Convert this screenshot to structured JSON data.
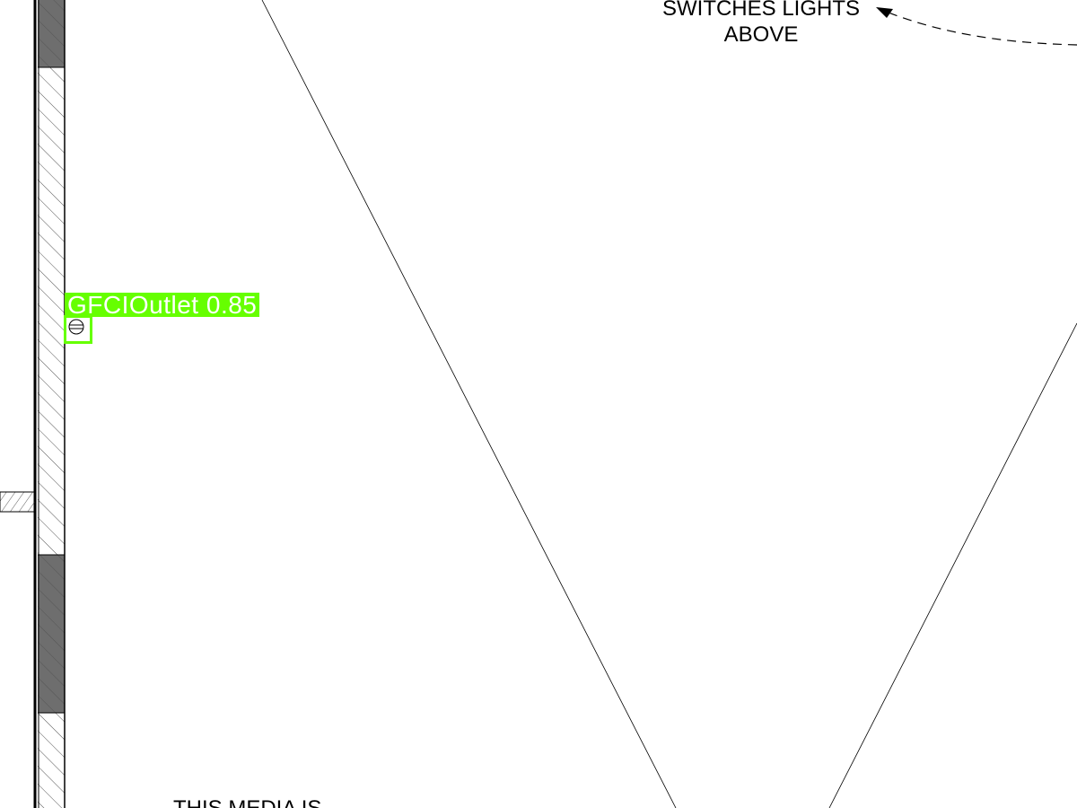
{
  "drawing": {
    "note_switches": {
      "line1": "SWITCHES LIGHTS",
      "line2": "ABOVE"
    },
    "note_media": "THIS MEDIA IS"
  },
  "detection": {
    "class_name": "GFCIOutlet",
    "confidence": "0.85",
    "label": "GFCIOutlet  0.85",
    "color": "#66ff00"
  },
  "colors": {
    "line": "#000000",
    "wall_dark": "#6e6e6e",
    "hatch": "#555555",
    "background": "#ffffff"
  }
}
